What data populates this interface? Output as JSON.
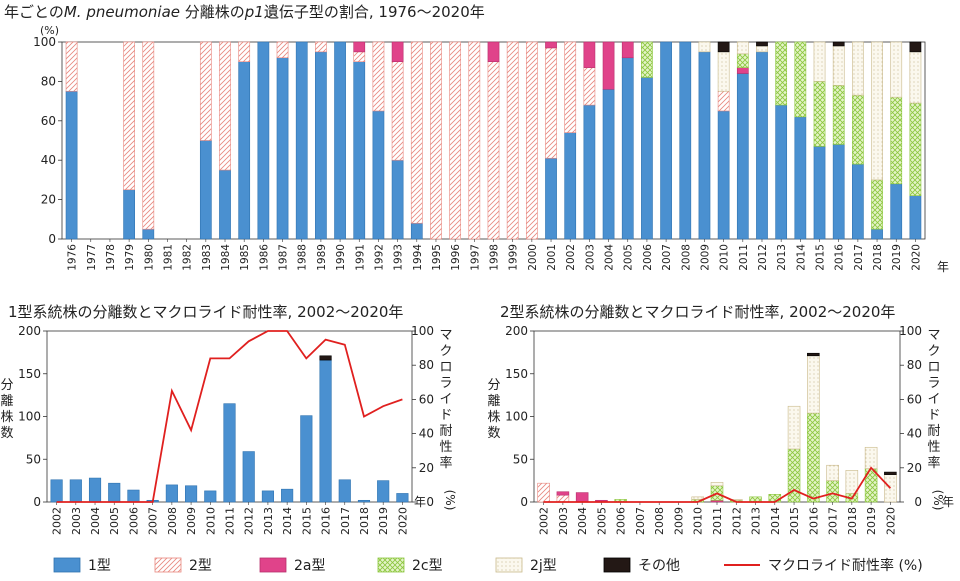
{
  "colors": {
    "t1": "#4a90d0",
    "t2": "#e8877e",
    "t2a": "#e0438a",
    "t2c": "#8cc63e",
    "t2j": "#c9b98a",
    "other": "#231815",
    "line": "#e0201f",
    "axis": "#333333"
  },
  "legend": [
    {
      "key": "t1",
      "label": "1型"
    },
    {
      "key": "t2",
      "label": "2型"
    },
    {
      "key": "t2a",
      "label": "2a型"
    },
    {
      "key": "t2c",
      "label": "2c型"
    },
    {
      "key": "t2j",
      "label": "2j型"
    },
    {
      "key": "other",
      "label": "その他"
    },
    {
      "key": "line",
      "label": "マクロライド耐性率 (%)"
    }
  ],
  "chart_data": [
    {
      "type": "bar",
      "stacked": true,
      "title": "年ごとのM. pneumoniae分離株のp1遺伝子型の割合, 1976〜2020年",
      "title_parts": {
        "a": "年ごとの",
        "b": "M. pneumoniae",
        "c": " 分離株の",
        "d": "p1",
        "e": "遺伝子型の割合, 1976〜2020年"
      },
      "y_unit": "(%)",
      "x_unit": "年",
      "ylim": [
        0,
        100
      ],
      "yticks": [
        0,
        20,
        40,
        60,
        80,
        100
      ],
      "categories": [
        "1976",
        "1977",
        "1978",
        "1979",
        "1980",
        "1981",
        "1982",
        "1983",
        "1984",
        "1985",
        "1986",
        "1987",
        "1988",
        "1989",
        "1990",
        "1991",
        "1992",
        "1993",
        "1994",
        "1995",
        "1996",
        "1997",
        "1998",
        "1999",
        "2000",
        "2001",
        "2002",
        "2003",
        "2004",
        "2005",
        "2006",
        "2007",
        "2008",
        "2009",
        "2010",
        "2011",
        "2012",
        "2013",
        "2014",
        "2015",
        "2016",
        "2017",
        "2018",
        "2019",
        "2020"
      ],
      "series": [
        {
          "key": "t1",
          "values": [
            75,
            0,
            0,
            25,
            5,
            0,
            0,
            50,
            35,
            90,
            100,
            92,
            100,
            95,
            100,
            90,
            65,
            40,
            8,
            0,
            0,
            0,
            0,
            0,
            0,
            41,
            54,
            68,
            76,
            92,
            82,
            100,
            100,
            95,
            65,
            84,
            95,
            68,
            62,
            47,
            48,
            38,
            5,
            28,
            22
          ]
        },
        {
          "key": "t2",
          "values": [
            25,
            0,
            0,
            75,
            95,
            0,
            0,
            50,
            65,
            10,
            0,
            8,
            0,
            5,
            0,
            5,
            35,
            50,
            92,
            100,
            100,
            100,
            90,
            100,
            100,
            56,
            46,
            19,
            0,
            0,
            0,
            0,
            0,
            0,
            10,
            0,
            0,
            0,
            0,
            0,
            0,
            0,
            0,
            0,
            0
          ]
        },
        {
          "key": "t2a",
          "values": [
            0,
            0,
            0,
            0,
            0,
            0,
            0,
            0,
            0,
            0,
            0,
            0,
            0,
            0,
            0,
            5,
            0,
            10,
            0,
            0,
            0,
            0,
            10,
            0,
            0,
            3,
            0,
            13,
            24,
            8,
            0,
            0,
            0,
            0,
            0,
            3,
            0,
            0,
            0,
            0,
            0,
            0,
            0,
            0,
            0
          ]
        },
        {
          "key": "t2c",
          "values": [
            0,
            0,
            0,
            0,
            0,
            0,
            0,
            0,
            0,
            0,
            0,
            0,
            0,
            0,
            0,
            0,
            0,
            0,
            0,
            0,
            0,
            0,
            0,
            0,
            0,
            0,
            0,
            0,
            0,
            0,
            18,
            0,
            0,
            0,
            0,
            7,
            0,
            32,
            38,
            33,
            30,
            35,
            25,
            44,
            47
          ]
        },
        {
          "key": "t2j",
          "values": [
            0,
            0,
            0,
            0,
            0,
            0,
            0,
            0,
            0,
            0,
            0,
            0,
            0,
            0,
            0,
            0,
            0,
            0,
            0,
            0,
            0,
            0,
            0,
            0,
            0,
            0,
            0,
            0,
            0,
            0,
            0,
            0,
            0,
            5,
            20,
            6,
            3,
            0,
            0,
            20,
            20,
            27,
            70,
            28,
            26
          ]
        },
        {
          "key": "other",
          "values": [
            0,
            0,
            0,
            0,
            0,
            0,
            0,
            0,
            0,
            0,
            0,
            0,
            0,
            0,
            0,
            0,
            0,
            0,
            0,
            0,
            0,
            0,
            0,
            0,
            0,
            0,
            0,
            0,
            0,
            0,
            0,
            0,
            0,
            0,
            5,
            0,
            2,
            0,
            0,
            0,
            2,
            0,
            0,
            0,
            5
          ]
        }
      ]
    },
    {
      "type": "bar+line",
      "title": "1型系統株の分離数とマクロライド耐性率, 2002〜2020年",
      "ylabel": "分離株数",
      "y2label": "マクロライド耐性率",
      "y2unit": "(%)",
      "x_unit": "年",
      "ylim": [
        0,
        200
      ],
      "yticks": [
        0,
        50,
        100,
        150,
        200
      ],
      "y2lim": [
        0,
        100
      ],
      "y2ticks": [
        0,
        20,
        40,
        60,
        80,
        100
      ],
      "categories": [
        "2002",
        "2003",
        "2004",
        "2005",
        "2006",
        "2007",
        "2008",
        "2009",
        "2010",
        "2011",
        "2012",
        "2013",
        "2014",
        "2015",
        "2016",
        "2017",
        "2018",
        "2019",
        "2020"
      ],
      "series": [
        {
          "key": "t1",
          "values": [
            26,
            26,
            28,
            22,
            14,
            2,
            20,
            19,
            13,
            115,
            59,
            13,
            15,
            101,
            166,
            26,
            2,
            25,
            10
          ]
        },
        {
          "key": "other",
          "values": [
            0,
            0,
            0,
            0,
            0,
            0,
            0,
            0,
            0,
            0,
            0,
            0,
            0,
            0,
            5,
            0,
            0,
            0,
            0
          ]
        }
      ],
      "line": {
        "key": "line",
        "values": [
          0,
          0,
          0,
          0,
          0,
          0,
          65,
          42,
          84,
          84,
          94,
          100,
          100,
          84,
          95,
          92,
          50,
          56,
          60
        ]
      }
    },
    {
      "type": "bar+line",
      "title": "2型系統株の分離数とマクロライド耐性率, 2002〜2020年",
      "ylabel": "分離株数",
      "y2label": "マクロライド耐性率",
      "y2unit": "(%)",
      "x_unit": "年",
      "ylim": [
        0,
        200
      ],
      "yticks": [
        0,
        50,
        100,
        150,
        200
      ],
      "y2lim": [
        0,
        100
      ],
      "y2ticks": [
        0,
        20,
        40,
        60,
        80,
        100
      ],
      "categories": [
        "2002",
        "2003",
        "2004",
        "2005",
        "2006",
        "2007",
        "2008",
        "2009",
        "2010",
        "2011",
        "2012",
        "2013",
        "2014",
        "2015",
        "2016",
        "2017",
        "2018",
        "2019",
        "2020"
      ],
      "series": [
        {
          "key": "t2",
          "values": [
            22,
            8,
            0,
            0,
            0,
            0,
            0,
            0,
            0,
            0,
            0,
            0,
            0,
            0,
            0,
            0,
            0,
            0,
            0
          ]
        },
        {
          "key": "t2a",
          "values": [
            0,
            4,
            11,
            2,
            0,
            0,
            0,
            0,
            0,
            2,
            0,
            0,
            0,
            0,
            0,
            0,
            0,
            0,
            0
          ]
        },
        {
          "key": "t2c",
          "values": [
            0,
            0,
            0,
            0,
            3,
            0,
            0,
            0,
            3,
            17,
            2,
            6,
            9,
            62,
            104,
            25,
            10,
            39,
            0
          ]
        },
        {
          "key": "t2j",
          "values": [
            0,
            0,
            0,
            0,
            0,
            0,
            0,
            0,
            3,
            4,
            1,
            0,
            0,
            50,
            67,
            18,
            27,
            25,
            32
          ]
        },
        {
          "key": "other",
          "values": [
            0,
            0,
            0,
            0,
            0,
            0,
            0,
            0,
            0,
            0,
            0,
            0,
            0,
            0,
            3,
            0,
            0,
            0,
            3
          ]
        }
      ],
      "line": {
        "key": "line",
        "values": [
          0,
          0,
          0,
          0,
          0,
          0,
          0,
          0,
          0,
          5,
          0,
          0,
          0,
          7,
          2,
          5,
          2,
          20,
          8
        ]
      }
    }
  ]
}
